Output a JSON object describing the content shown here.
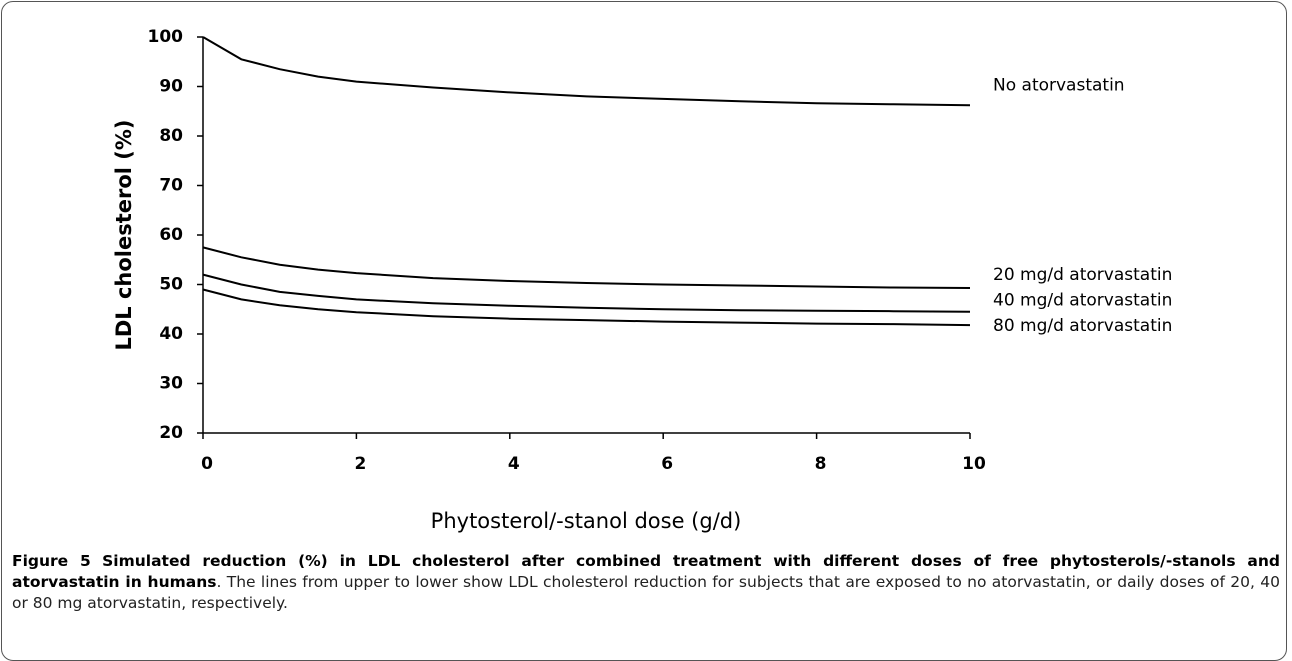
{
  "chart_data": {
    "type": "line",
    "y_label": "LDL cholesterol (%)",
    "x_label": "Phytosterol/-stanol dose (g/d)",
    "x": [
      0,
      0.5,
      1,
      1.5,
      2,
      3,
      4,
      5,
      6,
      7,
      8,
      9,
      10
    ],
    "series": [
      {
        "name": "No atorvastatin",
        "color": "#000000",
        "values": [
          100,
          95.5,
          93.5,
          92,
          91,
          89.8,
          88.8,
          88,
          87.5,
          87,
          86.6,
          86.4,
          86.2
        ]
      },
      {
        "name": "20 mg/d atorvastatin",
        "color": "#000000",
        "values": [
          57.5,
          55.5,
          54,
          53,
          52.3,
          51.3,
          50.7,
          50.3,
          50,
          49.8,
          49.6,
          49.4,
          49.3
        ]
      },
      {
        "name": "40 mg/d atorvastatin",
        "color": "#000000",
        "values": [
          52,
          50,
          48.5,
          47.7,
          47,
          46.2,
          45.7,
          45.3,
          45,
          44.8,
          44.7,
          44.6,
          44.5
        ]
      },
      {
        "name": "80 mg/d atorvastatin",
        "color": "#000000",
        "values": [
          49,
          47,
          45.8,
          45,
          44.4,
          43.6,
          43.1,
          42.8,
          42.5,
          42.3,
          42.1,
          42,
          41.8
        ]
      }
    ],
    "xlim": [
      0,
      10
    ],
    "xticks": [
      0,
      2,
      4,
      6,
      8,
      10
    ],
    "ylim": [
      20,
      100
    ],
    "yticks": [
      20,
      30,
      40,
      50,
      60,
      70,
      80,
      90,
      100
    ],
    "grid": false
  },
  "caption": {
    "label": "Figure 5",
    "title": "Simulated reduction (%) in LDL cholesterol after combined treatment with different doses of free phytosterols/-stanols and atorvastatin in humans",
    "text": ". The lines from upper to lower show LDL cholesterol reduction for subjects that are exposed to no atorvastatin, or daily doses of 20, 40 or 80 mg atorvastatin, respectively."
  }
}
